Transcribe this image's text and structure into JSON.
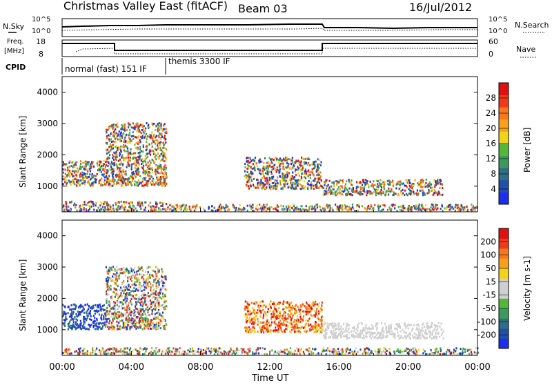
{
  "header": {
    "title": "Christmas Valley East (fitACF)",
    "beam": "Beam 03",
    "date": "16/Jul/2012"
  },
  "top_panels": {
    "nsky_label": "N.Sky",
    "nsearch_label": "N.Search",
    "noise_ticks_left": [
      "10^5",
      "10^0"
    ],
    "noise_ticks_right": [
      "10^5",
      "10^0"
    ],
    "freq_label_1": "Freq.",
    "freq_label_2": "[MHz]",
    "freq_ticks": [
      "18",
      "8"
    ],
    "nave_label": "Nave",
    "nave_ticks": [
      "60",
      "0"
    ],
    "cpid_label": "CPID",
    "cpid_segments": [
      "normal (fast) 151 IF",
      "themis 3300 IF"
    ]
  },
  "chart_data": [
    {
      "type": "heatmap",
      "name": "power-panel",
      "ylabel": "Slant Range [km]",
      "yticks": [
        "1000",
        "2000",
        "3000",
        "4000"
      ],
      "ylim": [
        180,
        4500
      ],
      "xlim_hours": [
        0,
        24
      ],
      "colorbar": {
        "label": "Power [dB]",
        "tick_labels": [
          "4",
          "8",
          "12",
          "16",
          "20",
          "24",
          "28"
        ],
        "colors": [
          "#1c2cf0",
          "#2050a8",
          "#2f6e86",
          "#3c9a5c",
          "#53b83a",
          "#f3d21a",
          "#f7a11a",
          "#f5781d",
          "#ee3a1a",
          "#e01010"
        ]
      },
      "echo_regions": [
        {
          "t_start": "00:00",
          "t_end": "02:30",
          "range_km": [
            1000,
            1800
          ],
          "power_db": "8-24"
        },
        {
          "t_start": "00:00",
          "t_end": "06:00",
          "range_km": [
            200,
            500
          ],
          "power_db": "8-28"
        },
        {
          "t_start": "02:30",
          "t_end": "06:00",
          "range_km": [
            1000,
            3000
          ],
          "power_db": "4-20"
        },
        {
          "t_start": "10:30",
          "t_end": "15:00",
          "range_km": [
            900,
            1900
          ],
          "power_db": "4-28"
        },
        {
          "t_start": "15:00",
          "t_end": "22:00",
          "range_km": [
            700,
            1200
          ],
          "power_db": "4-28"
        },
        {
          "t_start": "06:00",
          "t_end": "24:00",
          "range_km": [
            200,
            400
          ],
          "power_db": "4-16"
        }
      ]
    },
    {
      "type": "heatmap",
      "name": "velocity-panel",
      "ylabel": "Slant Range [km]",
      "yticks": [
        "1000",
        "2000",
        "3000",
        "4000"
      ],
      "ylim": [
        180,
        4500
      ],
      "xlim_hours": [
        0,
        24
      ],
      "colorbar": {
        "label": "Velocity [m s-1]",
        "tick_labels": [
          "200",
          "100",
          "50",
          "15",
          "-15",
          "-50",
          "-100",
          "-200"
        ],
        "colors": [
          "#1c2cf0",
          "#2050a8",
          "#2f6e86",
          "#3c9a5c",
          "#53b83a",
          "#cfcfcf",
          "#cfcfcf",
          "#f3d21a",
          "#f7a11a",
          "#f5781d",
          "#ee3a1a",
          "#e01010"
        ]
      },
      "echo_regions": [
        {
          "t_start": "00:00",
          "t_end": "02:30",
          "range_km": [
            1000,
            1800
          ],
          "velocity": "positive (blue)"
        },
        {
          "t_start": "02:30",
          "t_end": "06:00",
          "range_km": [
            1000,
            3000
          ],
          "velocity": "mixed / ground scatter"
        },
        {
          "t_start": "10:30",
          "t_end": "15:00",
          "range_km": [
            900,
            1900
          ],
          "velocity": "negative (orange/red)"
        },
        {
          "t_start": "15:00",
          "t_end": "22:00",
          "range_km": [
            700,
            1200
          ],
          "velocity": "ground scatter (grey)"
        },
        {
          "t_start": "00:00",
          "t_end": "24:00",
          "range_km": [
            200,
            400
          ],
          "velocity": "mixed"
        }
      ]
    }
  ],
  "xaxis": {
    "tick_labels": [
      "00:00",
      "04:00",
      "08:00",
      "12:00",
      "16:00",
      "20:00",
      "00:00"
    ],
    "label": "Time UT"
  }
}
